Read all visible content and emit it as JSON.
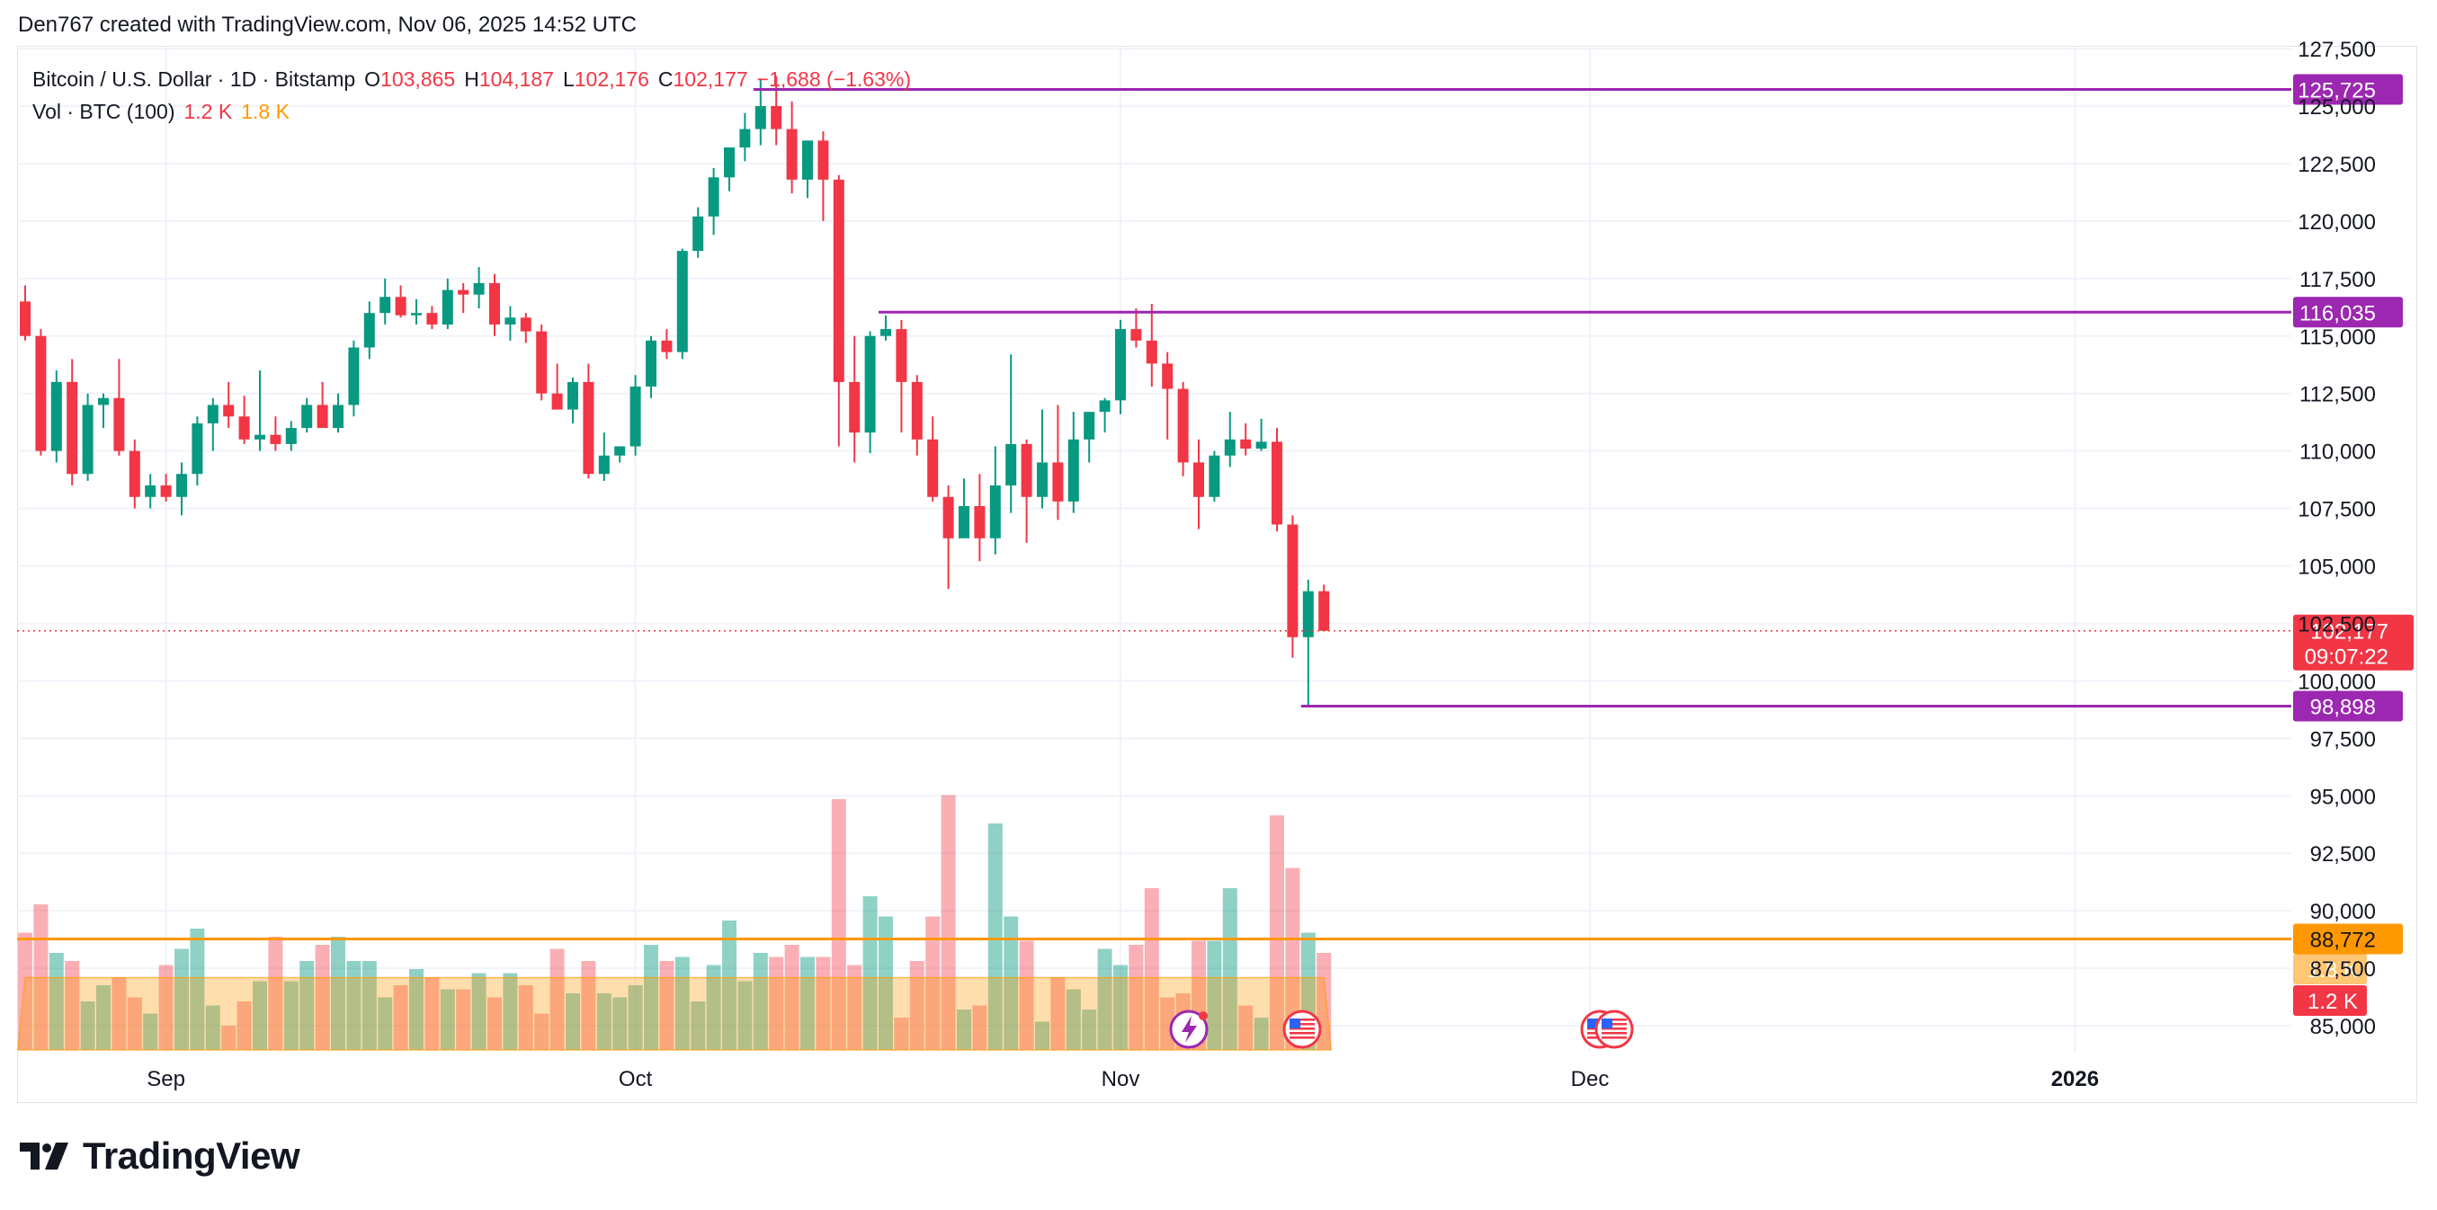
{
  "attribution": "Den767 created with TradingView.com, Nov 06, 2025 14:52 UTC",
  "legend": {
    "symbol": "Bitcoin / U.S. Dollar · 1D · Bitstamp",
    "o_label": "O",
    "o_value": "103,865",
    "h_label": "H",
    "h_value": "104,187",
    "l_label": "L",
    "l_value": "102,176",
    "c_label": "C",
    "c_value": "102,177",
    "change": "−1,688 (−1.63%)",
    "vol_label": "Vol · BTC (100)",
    "vol_value": "1.2 K",
    "vol_ma_value": "1.8 K"
  },
  "brand": "TradingView",
  "colors": {
    "up": "#089981",
    "down": "#f23645",
    "level": "#9c27b0",
    "orange_line": "#ff9800",
    "grid": "#f0f3fa",
    "axis_text": "#131722"
  },
  "events_icons": [
    "lightning-icon",
    "us-flag-icon",
    "us-flag-icon",
    "us-flag-icon"
  ],
  "chart_data": {
    "type": "candlestick",
    "ylim": [
      84000,
      128000
    ],
    "y_ticks": [
      85000,
      87500,
      90000,
      92500,
      95000,
      97500,
      100000,
      102500,
      105000,
      107500,
      110000,
      112500,
      115000,
      117500,
      120000,
      122500,
      125000,
      127500
    ],
    "x_ticks": [
      {
        "label": "Sep",
        "index": 9
      },
      {
        "label": "Oct",
        "index": 39
      },
      {
        "label": "Nov",
        "index": 70
      },
      {
        "label": "Dec",
        "index": 100
      },
      {
        "label": "2026",
        "index": 131
      }
    ],
    "candles": [
      [
        116500,
        117200,
        114800,
        115000
      ],
      [
        115000,
        115300,
        109800,
        110000
      ],
      [
        110000,
        113500,
        109500,
        113000
      ],
      [
        113000,
        114000,
        108500,
        109000
      ],
      [
        109000,
        112500,
        108700,
        112000
      ],
      [
        112000,
        112500,
        111000,
        112300
      ],
      [
        112300,
        114000,
        109800,
        110000
      ],
      [
        110000,
        110500,
        107500,
        108000
      ],
      [
        108000,
        109000,
        107500,
        108500
      ],
      [
        108500,
        109000,
        107800,
        108000
      ],
      [
        108000,
        109500,
        107200,
        109000
      ],
      [
        109000,
        111500,
        108500,
        111200
      ],
      [
        111200,
        112300,
        110000,
        112000
      ],
      [
        112000,
        113000,
        111000,
        111500
      ],
      [
        111500,
        112400,
        110300,
        110500
      ],
      [
        110500,
        113500,
        110000,
        110700
      ],
      [
        110700,
        111500,
        110000,
        110300
      ],
      [
        110300,
        111300,
        110000,
        111000
      ],
      [
        111000,
        112300,
        110800,
        112000
      ],
      [
        112000,
        113000,
        111000,
        111000
      ],
      [
        111000,
        112500,
        110800,
        112000
      ],
      [
        112000,
        114800,
        111500,
        114500
      ],
      [
        114500,
        116500,
        114000,
        116000
      ],
      [
        116000,
        117500,
        115500,
        116700
      ],
      [
        116700,
        117200,
        115800,
        115900
      ],
      [
        115900,
        116600,
        115500,
        116000
      ],
      [
        116000,
        116300,
        115300,
        115500
      ],
      [
        115500,
        117500,
        115300,
        117000
      ],
      [
        117000,
        117300,
        116000,
        116800
      ],
      [
        116800,
        118000,
        116200,
        117300
      ],
      [
        117300,
        117700,
        115000,
        115500
      ],
      [
        115500,
        116300,
        114800,
        115800
      ],
      [
        115800,
        116000,
        114700,
        115200
      ],
      [
        115200,
        115500,
        112200,
        112500
      ],
      [
        112500,
        113800,
        111800,
        111800
      ],
      [
        111800,
        113200,
        111200,
        113000
      ],
      [
        113000,
        113800,
        108800,
        109000
      ],
      [
        109000,
        110800,
        108700,
        109800
      ],
      [
        109800,
        110200,
        109500,
        110200
      ],
      [
        110200,
        113300,
        109800,
        112800
      ],
      [
        112800,
        115000,
        112300,
        114800
      ],
      [
        114800,
        115300,
        114000,
        114300
      ],
      [
        114300,
        118800,
        114000,
        118700
      ],
      [
        118700,
        120600,
        118400,
        120200
      ],
      [
        120200,
        122300,
        119400,
        121900
      ],
      [
        121900,
        123000,
        121300,
        123200
      ],
      [
        123200,
        124700,
        122600,
        124000
      ],
      [
        124000,
        126200,
        123300,
        125000
      ],
      [
        125000,
        126300,
        123300,
        124000
      ],
      [
        124000,
        125200,
        121200,
        121800
      ],
      [
        121800,
        123500,
        121000,
        123500
      ],
      [
        123500,
        123900,
        120000,
        121800
      ],
      [
        121800,
        122000,
        110200,
        113000
      ],
      [
        113000,
        115000,
        109500,
        110800
      ],
      [
        110800,
        115200,
        109900,
        115000
      ],
      [
        115000,
        115900,
        114800,
        115300
      ],
      [
        115300,
        115700,
        110800,
        113000
      ],
      [
        113000,
        113300,
        109800,
        110500
      ],
      [
        110500,
        111500,
        107800,
        108000
      ],
      [
        108000,
        108500,
        104000,
        106200
      ],
      [
        106200,
        108800,
        106300,
        107600
      ],
      [
        107600,
        109000,
        105200,
        106200
      ],
      [
        106200,
        110200,
        105500,
        108500
      ],
      [
        108500,
        114200,
        107300,
        110300
      ],
      [
        110300,
        110500,
        106000,
        108000
      ],
      [
        108000,
        111800,
        107500,
        109500
      ],
      [
        109500,
        112000,
        107000,
        107800
      ],
      [
        107800,
        111700,
        107300,
        110500
      ],
      [
        110500,
        111700,
        109500,
        111700
      ],
      [
        111700,
        112300,
        110800,
        112200
      ],
      [
        112200,
        115700,
        111600,
        115300
      ],
      [
        115300,
        116200,
        114500,
        114800
      ],
      [
        114800,
        116400,
        112800,
        113800
      ],
      [
        113800,
        114300,
        110500,
        112700
      ],
      [
        112700,
        113000,
        108900,
        109500
      ],
      [
        109500,
        110500,
        106600,
        108000
      ],
      [
        108000,
        110000,
        107800,
        109800
      ],
      [
        109800,
        111700,
        109300,
        110500
      ],
      [
        110500,
        111200,
        109800,
        110100
      ],
      [
        110100,
        111400,
        110000,
        110400
      ],
      [
        110400,
        111000,
        106500,
        106800
      ],
      [
        106800,
        107200,
        101000,
        101900
      ],
      [
        101900,
        104400,
        98900,
        103900
      ],
      [
        103900,
        104187,
        102176,
        102177
      ]
    ],
    "volume_height_pct": [
      29,
      36,
      24,
      22,
      12,
      16,
      18,
      13,
      9,
      21,
      25,
      30,
      11,
      6,
      12,
      17,
      28,
      17,
      22,
      26,
      28,
      22,
      22,
      13,
      16,
      20,
      18,
      15,
      15,
      19,
      13,
      19,
      16,
      9,
      25,
      14,
      22,
      14,
      13,
      16,
      26,
      22,
      23,
      12,
      21,
      32,
      17,
      24,
      23,
      26,
      23,
      23,
      62,
      21,
      38,
      33,
      8,
      22,
      33,
      63,
      10,
      11,
      56,
      33,
      27,
      7,
      18,
      15,
      10,
      25,
      21,
      26,
      40,
      13,
      14,
      27,
      27,
      40,
      11,
      8,
      58,
      45,
      29,
      24
    ],
    "volume_ma_pct": [
      7,
      7,
      7,
      7,
      7,
      7,
      7,
      7,
      7,
      7,
      7,
      7,
      7,
      7,
      7,
      7,
      7,
      7,
      7,
      7,
      7,
      7,
      7,
      7,
      7,
      7,
      7,
      7,
      7,
      7,
      7,
      7,
      7,
      7,
      7,
      7,
      7,
      7,
      7,
      7,
      7,
      7,
      7,
      7,
      7,
      7,
      7,
      7,
      7,
      7,
      7,
      7,
      7,
      7,
      7,
      7,
      7,
      7,
      7,
      7,
      7,
      7,
      7,
      7,
      7,
      7,
      7,
      7,
      7,
      7,
      7,
      7,
      7,
      7,
      7,
      7,
      7,
      7,
      7,
      7,
      7,
      7,
      7,
      7
    ],
    "levels": [
      {
        "price": 125725,
        "label": "125,725",
        "from_index": 47
      },
      {
        "price": 116035,
        "label": "116,035",
        "from_index": 55
      },
      {
        "price": 98898,
        "label": "98,898",
        "from_index": 82
      }
    ],
    "orange_line": {
      "price": 88772,
      "label": "88,772"
    },
    "last_price": {
      "price": 102177,
      "label": "102,177",
      "countdown": "09:07:22"
    },
    "volume_labels": [
      {
        "label": "1.8 K",
        "value_pct": 7
      },
      {
        "label": "1.2 K",
        "value_pct": 3
      }
    ]
  }
}
